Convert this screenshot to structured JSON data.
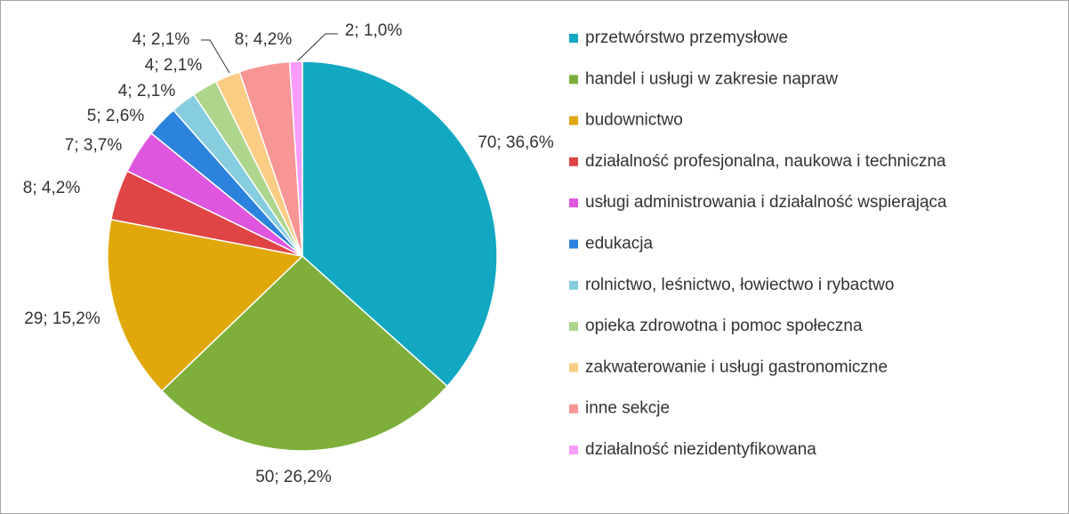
{
  "chart_data": {
    "type": "pie",
    "categories": [
      "przetwórstwo przemysłowe",
      "handel i usługi w zakresie napraw",
      "budownictwo",
      "działalność profesjonalna, naukowa i techniczna",
      "usługi administrowania i działalność wspierająca",
      "edukacja",
      "rolnictwo, leśnictwo, łowiectwo i rybactwo",
      "opieka zdrowotna i pomoc społeczna",
      "zakwaterowanie i usługi gastronomiczne",
      "inne sekcje",
      "działalność niezidentyfikowana"
    ],
    "values": [
      70,
      50,
      29,
      8,
      7,
      5,
      4,
      4,
      4,
      8,
      2
    ],
    "value_labels": [
      "70; 36,6%",
      "50; 26,2%",
      "29; 15,2%",
      "8; 4,2%",
      "7; 3,7%",
      "5; 2,6%",
      "4; 2,1%",
      "4; 2,1%",
      "4; 2,1%",
      "8; 4,2%",
      "2; 1,0%"
    ],
    "colors": [
      "#12a8c2",
      "#7daf3a",
      "#e0a80b",
      "#e04545",
      "#de55de",
      "#2b83dd",
      "#87cde0",
      "#add58c",
      "#fbcc83",
      "#f89595",
      "#f99cf9"
    ],
    "legend": "right"
  }
}
